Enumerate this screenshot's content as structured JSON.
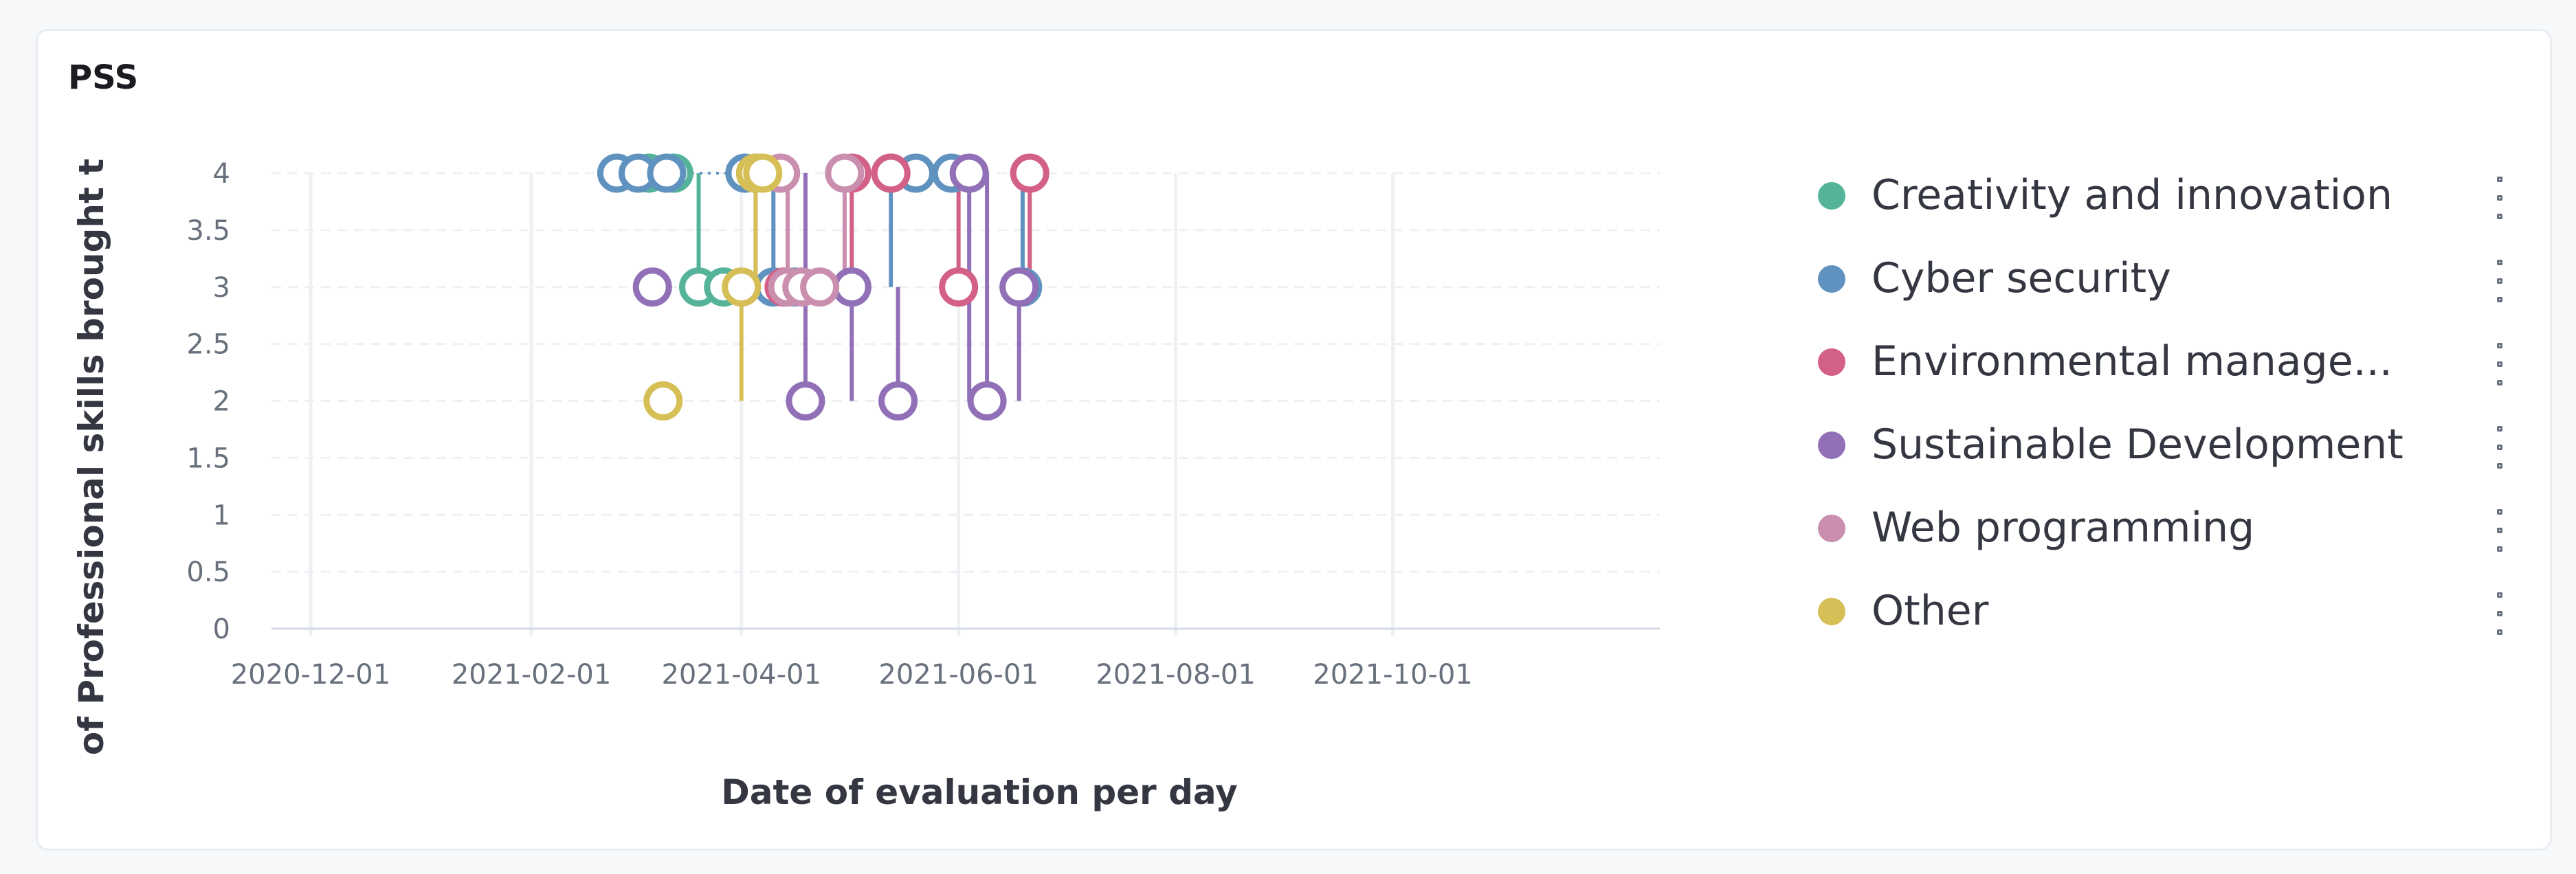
{
  "panel": {
    "title": "PSS"
  },
  "chart_data": {
    "type": "scatter",
    "title": "PSS",
    "xlabel": "Date of evaluation per day",
    "ylabel": "of Professional skills brought t",
    "x_type": "date",
    "xlim": [
      "2020-11-20",
      "2021-12-15"
    ],
    "ylim": [
      0,
      4
    ],
    "x_ticks": [
      "2020-12-01",
      "2021-02-01",
      "2021-04-01",
      "2021-06-01",
      "2021-08-01",
      "2021-10-01"
    ],
    "y_ticks": [
      0,
      0.5,
      1,
      1.5,
      2,
      2.5,
      3,
      3.5,
      4
    ],
    "grid": true,
    "legend_position": "right",
    "series": [
      {
        "name": "Creativity and innovation",
        "color": "#54b399",
        "points": [
          {
            "x": "2021-03-06",
            "y": 4
          },
          {
            "x": "2021-03-13",
            "y": 4
          },
          {
            "x": "2021-03-20",
            "y": 3
          },
          {
            "x": "2021-03-27",
            "y": 3
          }
        ]
      },
      {
        "name": "Cyber security",
        "color": "#6092c0",
        "points": [
          {
            "x": "2021-02-25",
            "y": 4
          },
          {
            "x": "2021-03-03",
            "y": 4
          },
          {
            "x": "2021-03-11",
            "y": 4
          },
          {
            "x": "2021-04-02",
            "y": 4
          },
          {
            "x": "2021-04-10",
            "y": 3
          },
          {
            "x": "2021-04-16",
            "y": 3
          },
          {
            "x": "2021-05-02",
            "y": 3
          },
          {
            "x": "2021-05-13",
            "y": 4
          },
          {
            "x": "2021-05-20",
            "y": 4
          },
          {
            "x": "2021-05-30",
            "y": 4
          },
          {
            "x": "2021-06-19",
            "y": 3
          }
        ]
      },
      {
        "name": "Environmental manage...",
        "color": "#d36086",
        "points": [
          {
            "x": "2021-04-13",
            "y": 3
          },
          {
            "x": "2021-05-02",
            "y": 4
          },
          {
            "x": "2021-05-13",
            "y": 4
          },
          {
            "x": "2021-06-01",
            "y": 3
          },
          {
            "x": "2021-06-21",
            "y": 4
          }
        ]
      },
      {
        "name": "Sustainable Development",
        "color": "#9170b8",
        "points": [
          {
            "x": "2021-03-07",
            "y": 3
          },
          {
            "x": "2021-04-05",
            "y": 4
          },
          {
            "x": "2021-04-19",
            "y": 2
          },
          {
            "x": "2021-05-02",
            "y": 3
          },
          {
            "x": "2021-05-15",
            "y": 2
          },
          {
            "x": "2021-06-04",
            "y": 4
          },
          {
            "x": "2021-06-09",
            "y": 2
          },
          {
            "x": "2021-06-18",
            "y": 3
          }
        ]
      },
      {
        "name": "Web programming",
        "color": "#ca8eae",
        "points": [
          {
            "x": "2021-04-12",
            "y": 4
          },
          {
            "x": "2021-04-14",
            "y": 3
          },
          {
            "x": "2021-04-18",
            "y": 3
          },
          {
            "x": "2021-04-23",
            "y": 3
          },
          {
            "x": "2021-04-30",
            "y": 4
          }
        ]
      },
      {
        "name": "Other",
        "color": "#d6bf57",
        "points": [
          {
            "x": "2021-03-10",
            "y": 2
          },
          {
            "x": "2021-04-01",
            "y": 3
          },
          {
            "x": "2021-04-05",
            "y": 4
          },
          {
            "x": "2021-04-07",
            "y": 4
          }
        ]
      }
    ]
  }
}
